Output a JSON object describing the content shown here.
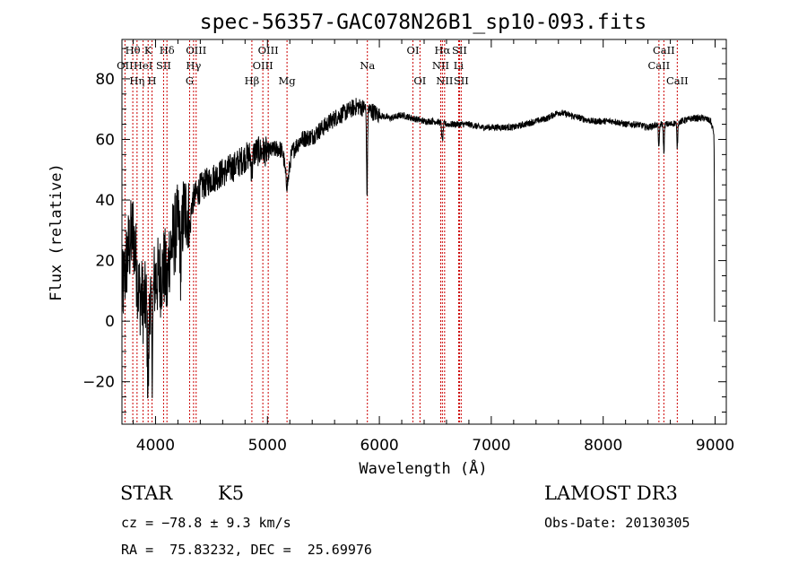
{
  "chart_data": {
    "type": "line",
    "title": "spec-56357-GAC078N26B1_sp10-093.fits",
    "xlabel": "Wavelength (Å)",
    "ylabel": "Flux (relative)",
    "xlim": [
      3700,
      9100
    ],
    "ylim": [
      -34,
      93
    ],
    "xticks": [
      4000,
      5000,
      6000,
      7000,
      8000,
      9000
    ],
    "yticks": [
      -20,
      0,
      20,
      40,
      60,
      80
    ],
    "grid": false,
    "line_color": "#000000",
    "marker_color": "#cc0000",
    "continuum": [
      [
        3700,
        8
      ],
      [
        3750,
        22
      ],
      [
        3800,
        30
      ],
      [
        3850,
        10
      ],
      [
        3900,
        5
      ],
      [
        3950,
        12
      ],
      [
        4000,
        14
      ],
      [
        4050,
        15
      ],
      [
        4100,
        20
      ],
      [
        4200,
        32
      ],
      [
        4300,
        38
      ],
      [
        4400,
        44
      ],
      [
        4500,
        47
      ],
      [
        4600,
        49
      ],
      [
        4700,
        51
      ],
      [
        4800,
        54
      ],
      [
        4900,
        56
      ],
      [
        5000,
        56
      ],
      [
        5100,
        57
      ],
      [
        5200,
        55
      ],
      [
        5300,
        60
      ],
      [
        5400,
        61
      ],
      [
        5500,
        64
      ],
      [
        5600,
        67
      ],
      [
        5700,
        69
      ],
      [
        5800,
        71
      ],
      [
        5900,
        70
      ],
      [
        6000,
        68
      ],
      [
        6100,
        67
      ],
      [
        6200,
        68
      ],
      [
        6300,
        67
      ],
      [
        6400,
        66
      ],
      [
        6500,
        66
      ],
      [
        6600,
        65
      ],
      [
        6700,
        65
      ],
      [
        6800,
        65
      ],
      [
        6900,
        64
      ],
      [
        7000,
        64
      ],
      [
        7100,
        64
      ],
      [
        7200,
        64
      ],
      [
        7300,
        65
      ],
      [
        7400,
        66
      ],
      [
        7500,
        67
      ],
      [
        7600,
        69
      ],
      [
        7700,
        68
      ],
      [
        7800,
        67
      ],
      [
        7900,
        66
      ],
      [
        8000,
        66
      ],
      [
        8100,
        66
      ],
      [
        8200,
        65
      ],
      [
        8300,
        65
      ],
      [
        8400,
        64
      ],
      [
        8500,
        65
      ],
      [
        8600,
        65
      ],
      [
        8700,
        66
      ],
      [
        8800,
        67
      ],
      [
        8900,
        67
      ],
      [
        8960,
        66
      ],
      [
        8990,
        62
      ],
      [
        9000,
        0
      ]
    ],
    "absorption": [
      {
        "x": 3934,
        "depth": 30,
        "width": 10
      },
      {
        "x": 3969,
        "depth": 25,
        "width": 10
      },
      {
        "x": 4102,
        "depth": 10,
        "width": 12
      },
      {
        "x": 4227,
        "depth": 15,
        "width": 10
      },
      {
        "x": 4307,
        "depth": 8,
        "width": 12
      },
      {
        "x": 4861,
        "depth": 6,
        "width": 10
      },
      {
        "x": 5175,
        "depth": 10,
        "width": 25
      },
      {
        "x": 5890,
        "depth": 28,
        "width": 6
      },
      {
        "x": 6563,
        "depth": 6,
        "width": 8
      },
      {
        "x": 8498,
        "depth": 8,
        "width": 6
      },
      {
        "x": 8542,
        "depth": 9,
        "width": 6
      },
      {
        "x": 8662,
        "depth": 8,
        "width": 6
      }
    ],
    "lines": [
      {
        "x": 3797,
        "label": "Hθ",
        "row": 0
      },
      {
        "x": 3727,
        "label": "OII",
        "row": 1
      },
      {
        "x": 3835,
        "label": "Hη",
        "row": 2
      },
      {
        "x": 3889,
        "label": "HeI",
        "row": 1
      },
      {
        "x": 3934,
        "label": "K",
        "row": 0
      },
      {
        "x": 3969,
        "label": "H",
        "row": 2
      },
      {
        "x": 4072,
        "label": "SII",
        "row": 1
      },
      {
        "x": 4102,
        "label": "Hδ",
        "row": 0
      },
      {
        "x": 4340,
        "label": "Hγ",
        "row": 1
      },
      {
        "x": 4363,
        "label": "OIII",
        "row": 0
      },
      {
        "x": 4305,
        "label": "G",
        "row": 2
      },
      {
        "x": 4861,
        "label": "Hβ",
        "row": 2
      },
      {
        "x": 5007,
        "label": "OIII",
        "row": 0
      },
      {
        "x": 4959,
        "label": "OIII",
        "row": 1
      },
      {
        "x": 5175,
        "label": "Mg",
        "row": 2
      },
      {
        "x": 5893,
        "label": "Na",
        "row": 1
      },
      {
        "x": 6300,
        "label": "OI",
        "row": 0
      },
      {
        "x": 6363,
        "label": "OI",
        "row": 2
      },
      {
        "x": 6563,
        "label": "Hα",
        "row": 0
      },
      {
        "x": 6548,
        "label": "NII",
        "row": 1
      },
      {
        "x": 6583,
        "label": "NII",
        "row": 2
      },
      {
        "x": 6716,
        "label": "SII",
        "row": 0
      },
      {
        "x": 6708,
        "label": "Li",
        "row": 1
      },
      {
        "x": 6731,
        "label": "SII",
        "row": 2
      },
      {
        "x": 8498,
        "label": "CaII",
        "row": 1
      },
      {
        "x": 8542,
        "label": "CaII",
        "row": 0
      },
      {
        "x": 8662,
        "label": "CaII",
        "row": 2
      }
    ]
  },
  "info": {
    "class": "STAR",
    "subclass": "K5",
    "survey": "LAMOST DR3",
    "cz": "cz = −78.8 ± 9.3 km/s",
    "obs_date": "Obs-Date: 20130305",
    "coords": "RA =  75.83232, DEC =  25.69976"
  }
}
